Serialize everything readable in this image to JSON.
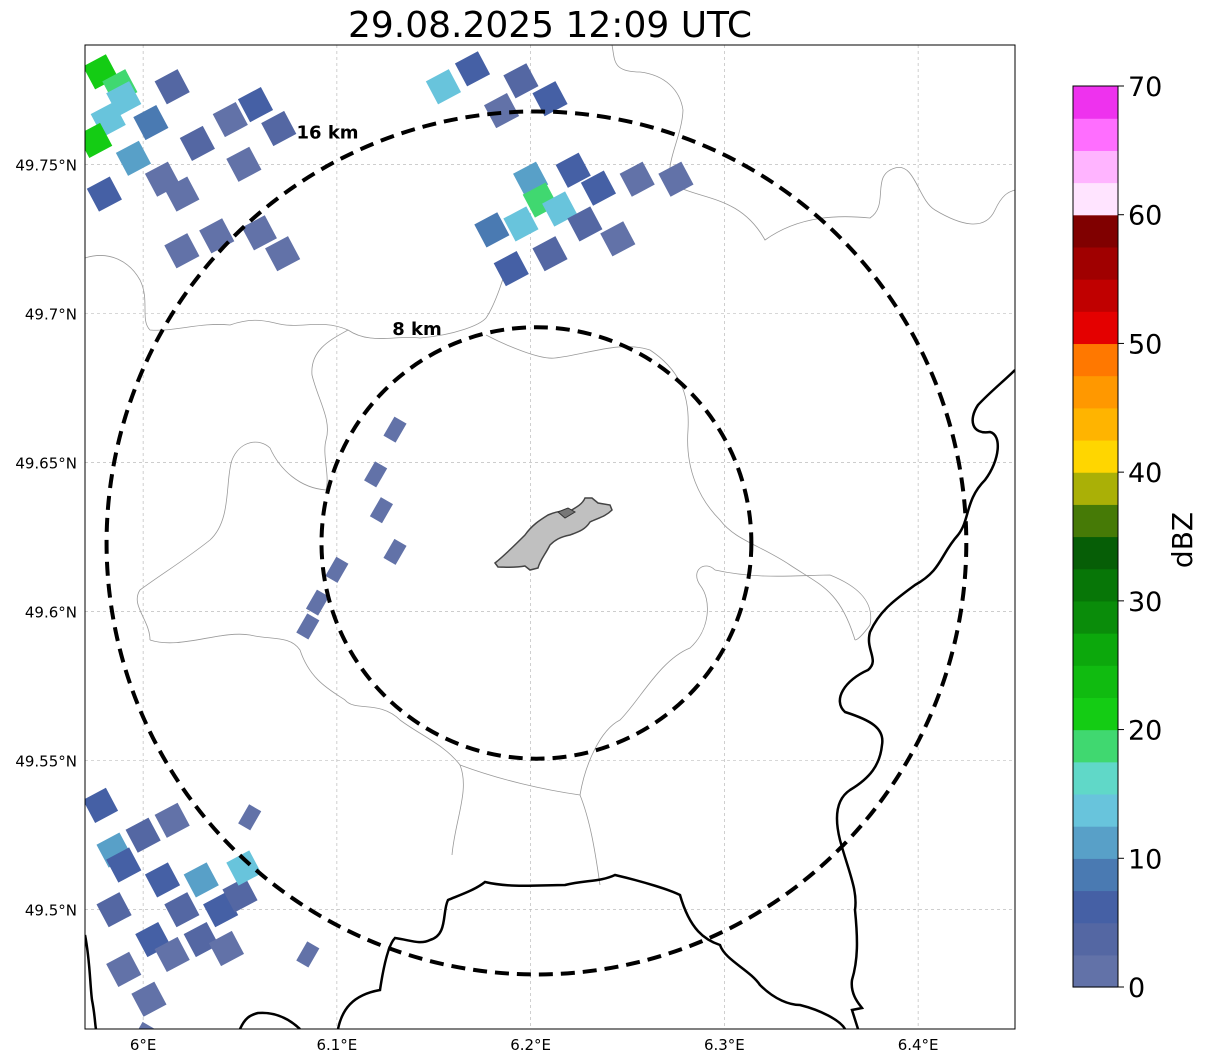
{
  "title": "29.08.2025 12:09 UTC",
  "map": {
    "lon_range": [
      5.97,
      6.45
    ],
    "lat_range": [
      49.46,
      49.79
    ],
    "x_ticks": [
      {
        "value": 6.0,
        "label": "6°E"
      },
      {
        "value": 6.1,
        "label": "6.1°E"
      },
      {
        "value": 6.2,
        "label": "6.2°E"
      },
      {
        "value": 6.3,
        "label": "6.3°E"
      },
      {
        "value": 6.4,
        "label": "6.4°E"
      }
    ],
    "y_ticks": [
      {
        "value": 49.5,
        "label": "49.5°N"
      },
      {
        "value": 49.55,
        "label": "49.55°N"
      },
      {
        "value": 49.6,
        "label": "49.6°N"
      },
      {
        "value": 49.65,
        "label": "49.65°N"
      },
      {
        "value": 49.7,
        "label": "49.7°N"
      },
      {
        "value": 49.75,
        "label": "49.75°N"
      }
    ],
    "gridlines": true,
    "range_rings": [
      {
        "label": "8 km",
        "radius_km": 8
      },
      {
        "label": "16 km",
        "radius_km": 16
      }
    ],
    "center": {
      "lon": 6.203,
      "lat": 49.623
    },
    "city_area": {
      "color": "#c0c0c0"
    }
  },
  "colorbar": {
    "label": "dBZ",
    "min": 0,
    "max": 70,
    "step": 2.5,
    "ticks": [
      {
        "value": 0,
        "label": "0"
      },
      {
        "value": 10,
        "label": "10"
      },
      {
        "value": 20,
        "label": "20"
      },
      {
        "value": 30,
        "label": "30"
      },
      {
        "value": 40,
        "label": "40"
      },
      {
        "value": 50,
        "label": "50"
      },
      {
        "value": 60,
        "label": "60"
      },
      {
        "value": 70,
        "label": "70"
      }
    ],
    "colors": [
      "#6272a8",
      "#5467a3",
      "#4560a5",
      "#4a7ab2",
      "#58a0c8",
      "#68c4dc",
      "#60d8c8",
      "#40d870",
      "#14cc14",
      "#10bb10",
      "#0ca80c",
      "#0a8c0a",
      "#077607",
      "#065e06",
      "#467a06",
      "#aab006",
      "#ffd600",
      "#ffb400",
      "#ff9800",
      "#ff7800",
      "#e40000",
      "#c00000",
      "#a00000",
      "#800000",
      "#ffe4ff",
      "#ffb4ff",
      "#ff6eff",
      "#ee32ee"
    ]
  },
  "echoes": [
    {
      "lon": 5.978,
      "lat": 49.781,
      "dbz": 20
    },
    {
      "lon": 5.988,
      "lat": 49.776,
      "dbz": 18
    },
    {
      "lon": 5.982,
      "lat": 49.765,
      "dbz": 13
    },
    {
      "lon": 5.975,
      "lat": 49.758,
      "dbz": 20
    },
    {
      "lon": 5.995,
      "lat": 49.752,
      "dbz": 10
    },
    {
      "lon": 5.99,
      "lat": 49.772,
      "dbz": 13
    },
    {
      "lon": 6.004,
      "lat": 49.764,
      "dbz": 9
    },
    {
      "lon": 6.015,
      "lat": 49.776,
      "dbz": 4
    },
    {
      "lon": 6.028,
      "lat": 49.757,
      "dbz": 4
    },
    {
      "lon": 6.045,
      "lat": 49.765,
      "dbz": 2
    },
    {
      "lon": 6.058,
      "lat": 49.77,
      "dbz": 6
    },
    {
      "lon": 6.07,
      "lat": 49.762,
      "dbz": 4
    },
    {
      "lon": 6.052,
      "lat": 49.75,
      "dbz": 2
    },
    {
      "lon": 6.01,
      "lat": 49.745,
      "dbz": 2
    },
    {
      "lon": 5.98,
      "lat": 49.74,
      "dbz": 6
    },
    {
      "lon": 6.02,
      "lat": 49.721,
      "dbz": 2
    },
    {
      "lon": 6.038,
      "lat": 49.726,
      "dbz": 1
    },
    {
      "lon": 6.06,
      "lat": 49.727,
      "dbz": 2
    },
    {
      "lon": 6.072,
      "lat": 49.72,
      "dbz": 1
    },
    {
      "lon": 6.02,
      "lat": 49.74,
      "dbz": 1
    },
    {
      "lon": 6.17,
      "lat": 49.782,
      "dbz": 6
    },
    {
      "lon": 6.195,
      "lat": 49.778,
      "dbz": 4
    },
    {
      "lon": 6.21,
      "lat": 49.772,
      "dbz": 6
    },
    {
      "lon": 6.155,
      "lat": 49.776,
      "dbz": 13
    },
    {
      "lon": 6.185,
      "lat": 49.768,
      "dbz": 2
    },
    {
      "lon": 6.2,
      "lat": 49.745,
      "dbz": 10
    },
    {
      "lon": 6.205,
      "lat": 49.738,
      "dbz": 18
    },
    {
      "lon": 6.215,
      "lat": 49.735,
      "dbz": 13
    },
    {
      "lon": 6.195,
      "lat": 49.73,
      "dbz": 13
    },
    {
      "lon": 6.18,
      "lat": 49.728,
      "dbz": 9
    },
    {
      "lon": 6.222,
      "lat": 49.748,
      "dbz": 6
    },
    {
      "lon": 6.228,
      "lat": 49.73,
      "dbz": 4
    },
    {
      "lon": 6.235,
      "lat": 49.742,
      "dbz": 6
    },
    {
      "lon": 6.19,
      "lat": 49.715,
      "dbz": 6
    },
    {
      "lon": 6.21,
      "lat": 49.72,
      "dbz": 4
    },
    {
      "lon": 6.245,
      "lat": 49.725,
      "dbz": 2
    },
    {
      "lon": 6.255,
      "lat": 49.745,
      "dbz": 2
    },
    {
      "lon": 6.275,
      "lat": 49.745,
      "dbz": 2
    },
    {
      "lon": 5.978,
      "lat": 49.535,
      "dbz": 6
    },
    {
      "lon": 5.985,
      "lat": 49.52,
      "dbz": 10
    },
    {
      "lon": 5.99,
      "lat": 49.515,
      "dbz": 6
    },
    {
      "lon": 6.0,
      "lat": 49.525,
      "dbz": 4
    },
    {
      "lon": 6.015,
      "lat": 49.53,
      "dbz": 2
    },
    {
      "lon": 6.01,
      "lat": 49.51,
      "dbz": 6
    },
    {
      "lon": 5.985,
      "lat": 49.5,
      "dbz": 4
    },
    {
      "lon": 6.005,
      "lat": 49.49,
      "dbz": 6
    },
    {
      "lon": 6.02,
      "lat": 49.5,
      "dbz": 4
    },
    {
      "lon": 6.03,
      "lat": 49.51,
      "dbz": 10
    },
    {
      "lon": 6.04,
      "lat": 49.5,
      "dbz": 6
    },
    {
      "lon": 6.05,
      "lat": 49.505,
      "dbz": 4
    },
    {
      "lon": 6.03,
      "lat": 49.49,
      "dbz": 4
    },
    {
      "lon": 6.015,
      "lat": 49.485,
      "dbz": 2
    },
    {
      "lon": 5.99,
      "lat": 49.48,
      "dbz": 2
    },
    {
      "lon": 6.003,
      "lat": 49.47,
      "dbz": 1
    },
    {
      "lon": 6.043,
      "lat": 49.487,
      "dbz": 2
    },
    {
      "lon": 6.052,
      "lat": 49.514,
      "dbz": 13
    }
  ],
  "small_echoes": [
    {
      "lon": 6.13,
      "lat": 49.661,
      "dbz": 1
    },
    {
      "lon": 6.12,
      "lat": 49.646,
      "dbz": 2
    },
    {
      "lon": 6.123,
      "lat": 49.634,
      "dbz": 2
    },
    {
      "lon": 6.13,
      "lat": 49.62,
      "dbz": 1
    },
    {
      "lon": 6.1,
      "lat": 49.614,
      "dbz": 2
    },
    {
      "lon": 6.09,
      "lat": 49.603,
      "dbz": 1
    },
    {
      "lon": 6.085,
      "lat": 49.595,
      "dbz": 1
    },
    {
      "lon": 6.055,
      "lat": 49.531,
      "dbz": 1
    },
    {
      "lon": 6.085,
      "lat": 49.485,
      "dbz": 1
    },
    {
      "lon": 6.0,
      "lat": 49.458,
      "dbz": 1
    }
  ]
}
